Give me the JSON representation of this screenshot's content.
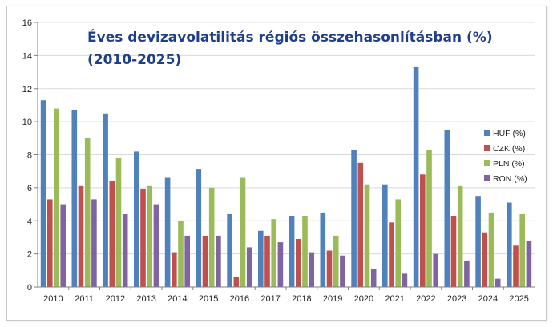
{
  "chart_data": {
    "type": "bar",
    "title_lines": [
      "Éves devizavolatilitás régiós összehasonlításban (%)",
      "(2010-2025)"
    ],
    "xlabel": "",
    "ylabel": "",
    "ylim": [
      0,
      16
    ],
    "yticks": [
      0,
      2,
      4,
      6,
      8,
      10,
      12,
      14,
      16
    ],
    "grid": true,
    "legend_position": "right",
    "categories": [
      "2010",
      "2011",
      "2012",
      "2013",
      "2014",
      "2015",
      "2016",
      "2017",
      "2018",
      "2019",
      "2020",
      "2021",
      "2022",
      "2023",
      "2024",
      "2025"
    ],
    "series": [
      {
        "name": "HUF (%)",
        "color": "#4f81bd",
        "values": [
          11.3,
          10.7,
          10.5,
          8.2,
          6.6,
          7.1,
          4.4,
          3.4,
          4.3,
          4.5,
          8.3,
          6.2,
          13.3,
          9.5,
          5.5,
          5.1
        ]
      },
      {
        "name": "CZK (%)",
        "color": "#c0504d",
        "values": [
          5.3,
          6.1,
          6.4,
          5.9,
          2.1,
          3.1,
          0.6,
          3.1,
          2.9,
          2.2,
          7.5,
          3.9,
          6.8,
          4.3,
          3.3,
          2.5
        ]
      },
      {
        "name": "PLN (%)",
        "color": "#9bbb59",
        "values": [
          10.8,
          9.0,
          7.8,
          6.1,
          4.0,
          6.0,
          6.6,
          4.1,
          4.3,
          3.1,
          6.2,
          5.3,
          8.3,
          6.1,
          4.5,
          4.4
        ]
      },
      {
        "name": "RON (%)",
        "color": "#8064a2",
        "values": [
          5.0,
          5.3,
          4.4,
          5.0,
          3.1,
          3.1,
          2.4,
          2.7,
          2.1,
          1.9,
          1.1,
          0.8,
          2.0,
          1.6,
          0.5,
          2.8
        ]
      }
    ]
  }
}
